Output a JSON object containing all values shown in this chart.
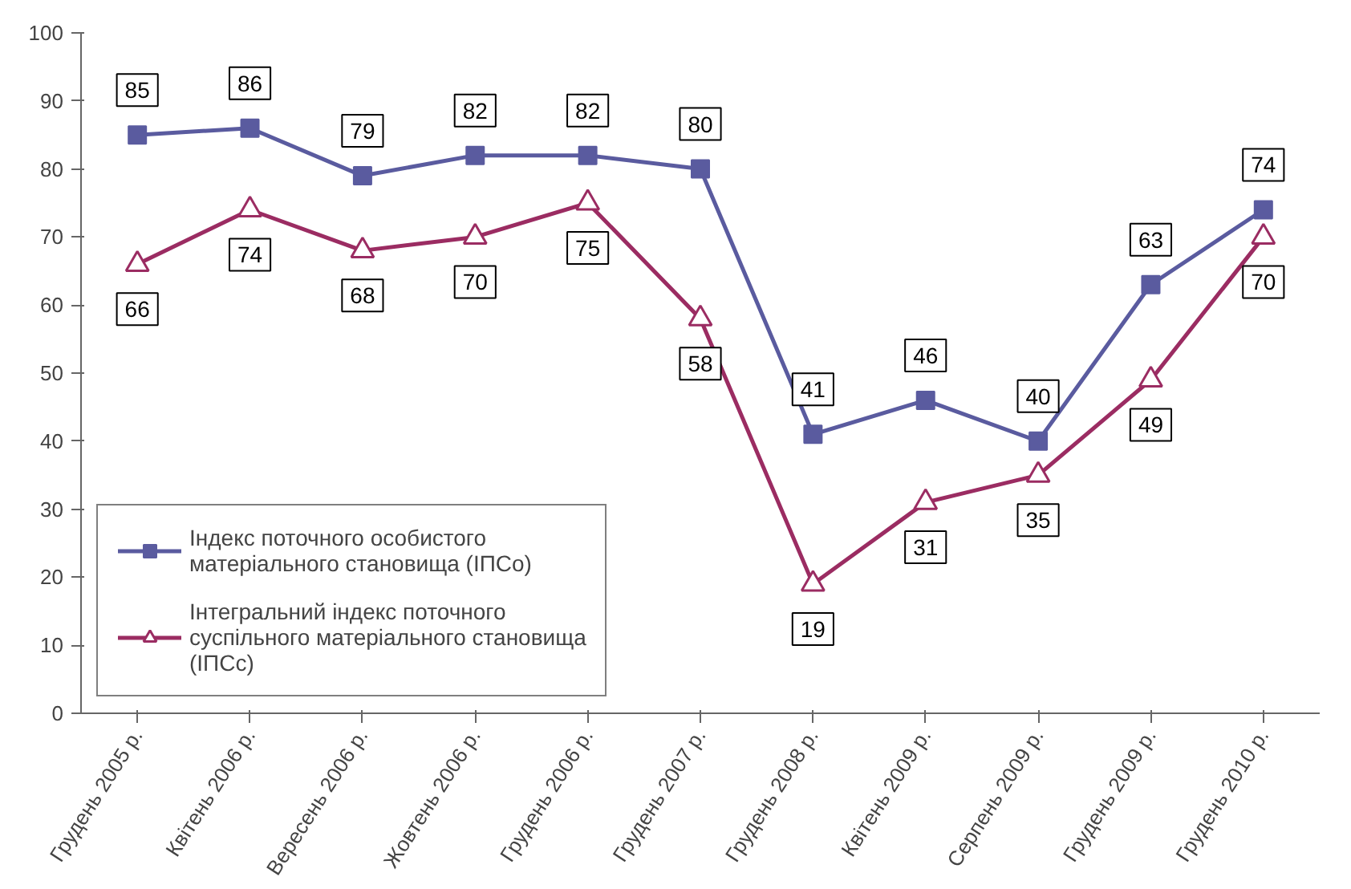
{
  "chart_data": {
    "type": "line",
    "categories": [
      "Грудень 2005 р.",
      "Квітень 2006 р.",
      "Вересень 2006 р.",
      "Жовтень 2006 р.",
      "Грудень 2006 р.",
      "Грудень 2007 р.",
      "Грудень 2008 р.",
      "Квітень 2009 р.",
      "Серпень 2009 р.",
      "Грудень 2009 р.",
      "Грудень 2010 р."
    ],
    "series": [
      {
        "name": "Індекс поточного особистого матеріального становища (ІПСо)",
        "color": "#5a5b9f",
        "marker": "square",
        "values": [
          85,
          86,
          79,
          82,
          82,
          80,
          41,
          46,
          40,
          63,
          74
        ]
      },
      {
        "name": "Інтегральний індекс поточного суспільного матеріального становища (ІПСс)",
        "color": "#9b2c62",
        "marker": "triangle",
        "values": [
          66,
          74,
          68,
          70,
          75,
          58,
          19,
          31,
          35,
          49,
          70
        ]
      }
    ],
    "ylim": [
      0,
      100
    ],
    "yticks": [
      0,
      10,
      20,
      30,
      40,
      50,
      60,
      70,
      80,
      90,
      100
    ],
    "grid": false,
    "legend": "bottom left",
    "data_labels": true,
    "line_style": "solid"
  }
}
